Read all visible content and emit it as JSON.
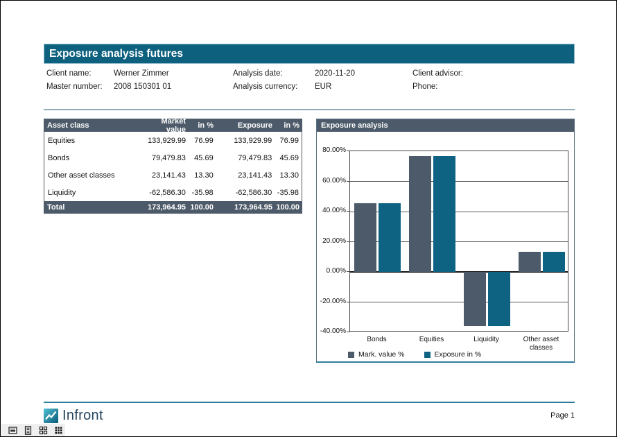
{
  "report": {
    "title": "Exposure analysis futures",
    "fields": [
      {
        "label": "Client name:",
        "value": "Werner Zimmer"
      },
      {
        "label": "Master number:",
        "value": "2008 150301 01"
      },
      {
        "label": "Analysis date:",
        "value": "2020-11-20"
      },
      {
        "label": "Analysis currency:",
        "value": "EUR"
      },
      {
        "label": "Client advisor:",
        "value": ""
      },
      {
        "label": "Phone:",
        "value": ""
      }
    ]
  },
  "table": {
    "headers": [
      "Asset class",
      "Market value",
      "in %",
      "Exposure",
      "in %"
    ],
    "rows": [
      [
        "Equities",
        "133,929.99",
        "76.99",
        "133,929.99",
        "76.99"
      ],
      [
        "Bonds",
        "79,479.83",
        "45.69",
        "79,479.83",
        "45.69"
      ],
      [
        "Other asset classes",
        "23,141.43",
        "13.30",
        "23,141.43",
        "13.30"
      ],
      [
        "Liquidity",
        "-62,586.30",
        "-35.98",
        "-62,586.30",
        "-35.98"
      ]
    ],
    "total": [
      "Total",
      "173,964.95",
      "100.00",
      "173,964.95",
      "100.00"
    ]
  },
  "chart_data": {
    "type": "bar",
    "title": "Exposure analysis",
    "categories": [
      "Bonds",
      "Equities",
      "Liquidity",
      "Other asset classes"
    ],
    "series": [
      {
        "name": "Mark. value %",
        "color": "#4d5a69",
        "values": [
          45.69,
          76.99,
          -35.98,
          13.3
        ]
      },
      {
        "name": "Exposure in %",
        "color": "#0e6383",
        "values": [
          45.69,
          76.99,
          -35.98,
          13.3
        ]
      }
    ],
    "ylim": [
      -40,
      80
    ],
    "ytick_step": 20,
    "ytick_suffix": "%",
    "grid": true,
    "legend_position": "bottom"
  },
  "footer": {
    "brand": "Infront",
    "page_label": "Page 1"
  },
  "statusbar": {
    "icons": [
      "single-page-view",
      "continuous-page-view",
      "two-by-two-pages-view",
      "multiple-pages-view"
    ]
  },
  "colors": {
    "title_bar": "#0d617f",
    "panel_header": "#4d5a69",
    "bar_market_value": "#4d5a69",
    "bar_exposure": "#0e6383",
    "divider_top": "#8fabb6",
    "divider_bottom": "#2e7e9c"
  }
}
